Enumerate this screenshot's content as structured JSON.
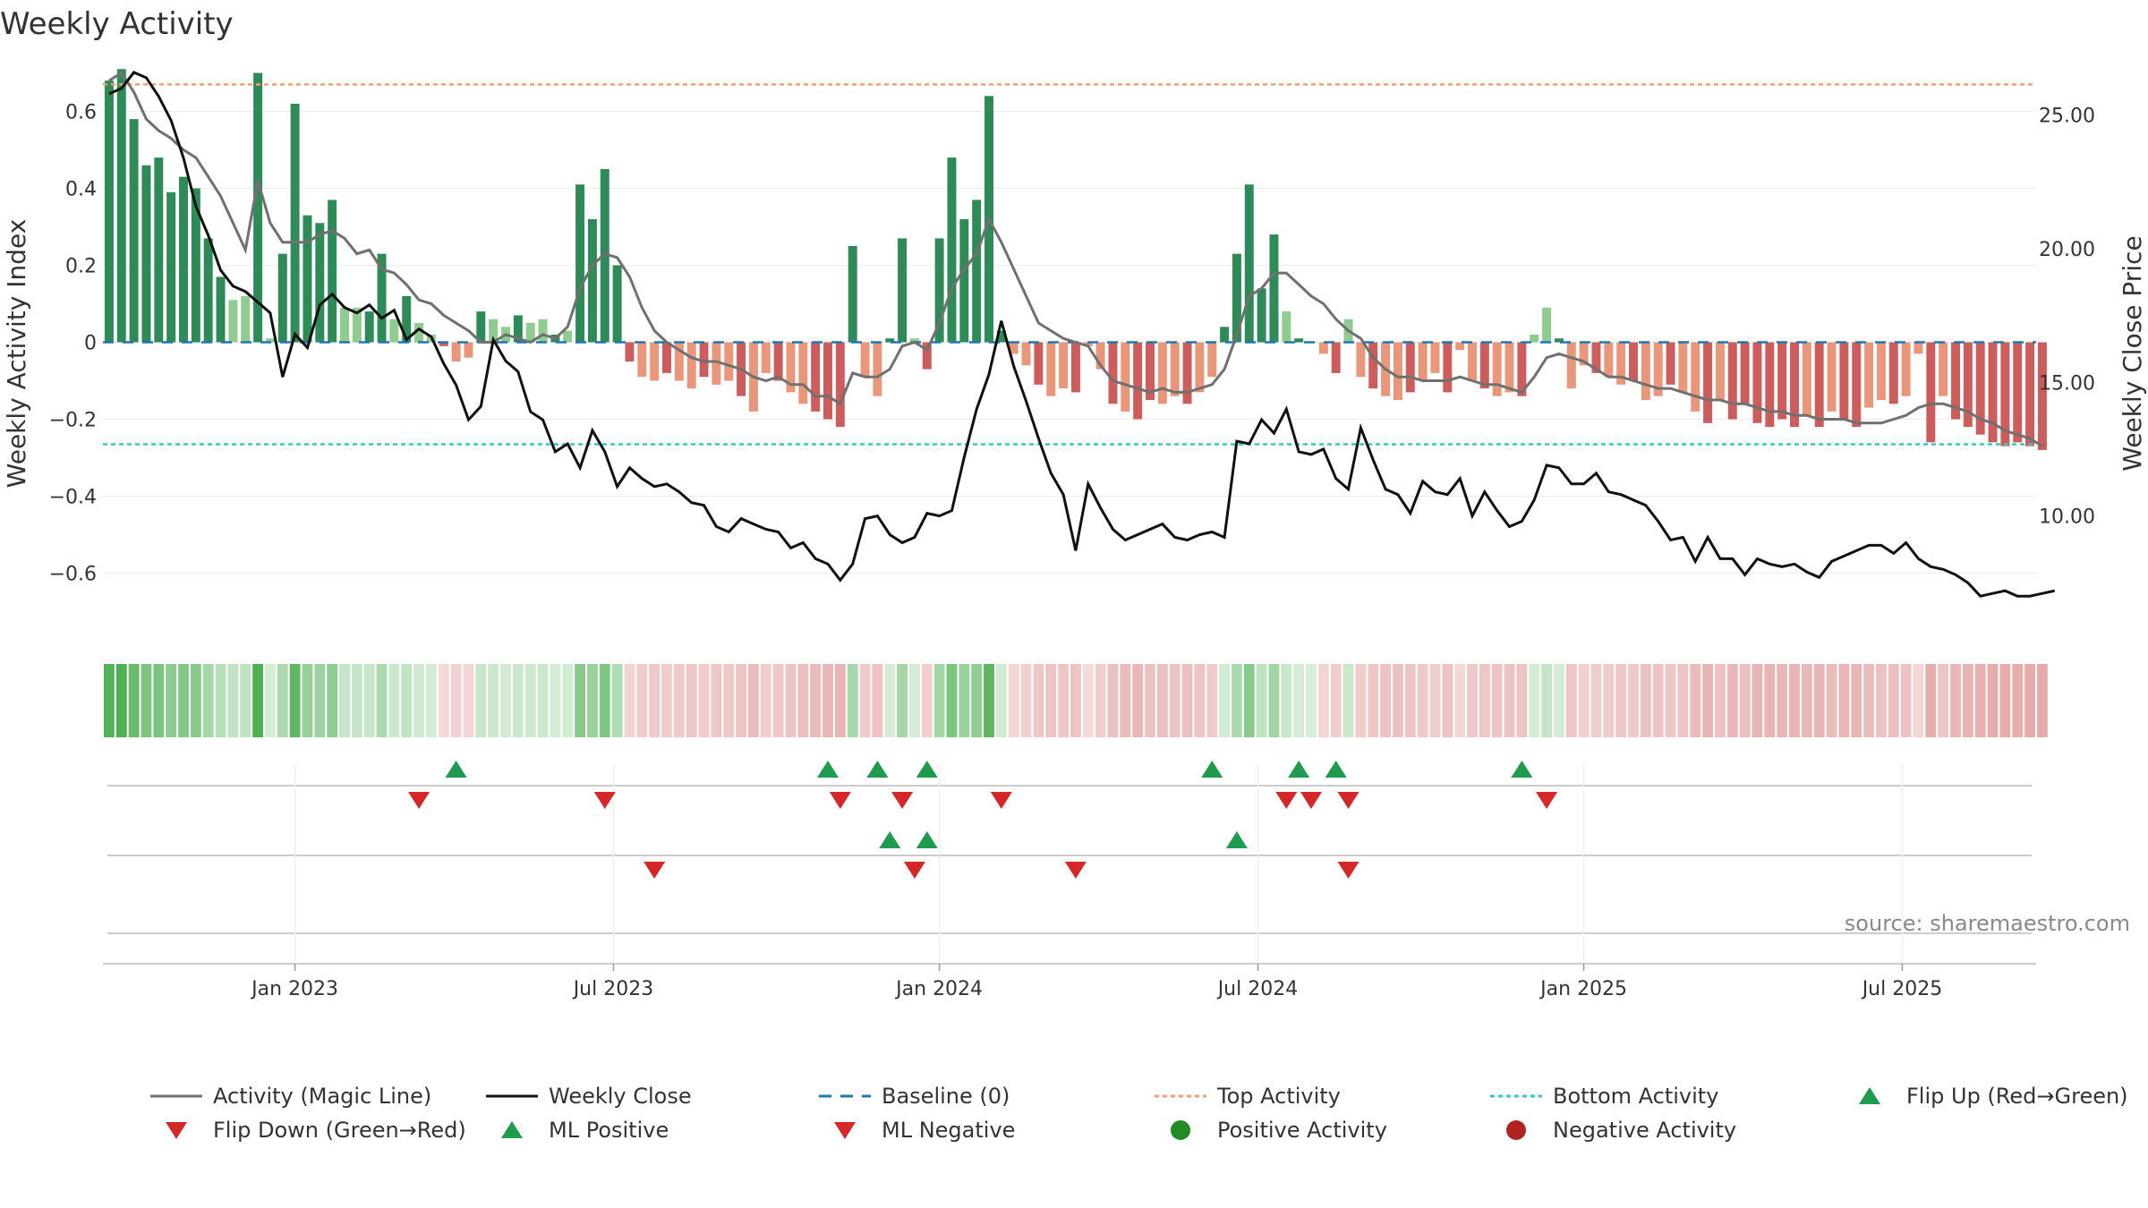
{
  "chart_data": {
    "type": "bar",
    "title": "Weekly Activity",
    "ylabel_left": "Weekly Activity Index",
    "ylabel_right": "Weekly Close Price",
    "source": "source: sharemaestro.com",
    "ylim_left": [
      -0.75,
      0.75
    ],
    "ylim_right": [
      5.7,
      27.3
    ],
    "yticks_left": [
      {
        "v": 0.6,
        "label": "0.6"
      },
      {
        "v": 0.4,
        "label": "0.4"
      },
      {
        "v": 0.2,
        "label": "0.2"
      },
      {
        "v": 0,
        "label": "0"
      },
      {
        "v": -0.2,
        "label": "−0.2"
      },
      {
        "v": -0.4,
        "label": "−0.4"
      },
      {
        "v": -0.6,
        "label": "−0.6"
      }
    ],
    "yticks_right": [
      {
        "v": 25,
        "label": "25.00"
      },
      {
        "v": 20,
        "label": "20.00"
      },
      {
        "v": 15,
        "label": "15.00"
      },
      {
        "v": 10,
        "label": "10.00"
      }
    ],
    "x_domain": [
      -0.5,
      155.5
    ],
    "xticks": [
      {
        "week": 15,
        "label": "Jan 2023"
      },
      {
        "week": 40.7,
        "label": "Jul 2023"
      },
      {
        "week": 67,
        "label": "Jan 2024"
      },
      {
        "week": 92.7,
        "label": "Jul 2024"
      },
      {
        "week": 119,
        "label": "Jan 2025"
      },
      {
        "week": 144.7,
        "label": "Jul 2025"
      }
    ],
    "top_activity": 0.67,
    "bottom_activity": -0.265,
    "series": [
      {
        "name": "Weekly Activity Index",
        "kind": "bar",
        "values": [
          0.68,
          0.71,
          0.58,
          0.46,
          0.48,
          0.39,
          0.43,
          0.4,
          0.27,
          0.17,
          0.11,
          0.12,
          0.7,
          0.01,
          0.23,
          0.62,
          0.33,
          0.31,
          0.37,
          0.09,
          0.09,
          0.08,
          0.23,
          0.06,
          0.12,
          0.05,
          0.02,
          -0.01,
          -0.05,
          -0.04,
          0.08,
          0.06,
          0.04,
          0.07,
          0.05,
          0.06,
          0.02,
          0.03,
          0.41,
          0.32,
          0.45,
          0.2,
          -0.05,
          -0.09,
          -0.1,
          -0.08,
          -0.1,
          -0.12,
          -0.09,
          -0.11,
          -0.1,
          -0.14,
          -0.18,
          -0.08,
          -0.1,
          -0.13,
          -0.16,
          -0.18,
          -0.2,
          -0.22,
          0.25,
          -0.09,
          -0.14,
          0.01,
          0.27,
          0.01,
          -0.07,
          0.27,
          0.48,
          0.32,
          0.37,
          0.64,
          0.03,
          -0.03,
          -0.06,
          -0.11,
          -0.14,
          -0.12,
          -0.13,
          -0.01,
          -0.07,
          -0.16,
          -0.18,
          -0.2,
          -0.15,
          -0.16,
          -0.14,
          -0.16,
          -0.13,
          -0.09,
          0.04,
          0.23,
          0.41,
          0.14,
          0.28,
          0.08,
          0.01,
          0.0,
          -0.03,
          -0.08,
          0.06,
          -0.09,
          -0.12,
          -0.14,
          -0.15,
          -0.13,
          -0.1,
          -0.08,
          -0.13,
          -0.02,
          -0.1,
          -0.12,
          -0.14,
          -0.13,
          -0.14,
          0.02,
          0.09,
          0.01,
          -0.12,
          -0.06,
          -0.08,
          -0.09,
          -0.11,
          -0.1,
          -0.15,
          -0.14,
          -0.11,
          -0.13,
          -0.18,
          -0.21,
          -0.15,
          -0.2,
          -0.16,
          -0.21,
          -0.22,
          -0.2,
          -0.22,
          -0.19,
          -0.22,
          -0.18,
          -0.2,
          -0.22,
          -0.17,
          -0.15,
          -0.16,
          -0.14,
          -0.03,
          -0.26,
          -0.14,
          -0.2,
          -0.22,
          -0.24,
          -0.26,
          -0.27,
          -0.26,
          -0.27,
          -0.28
        ]
      },
      {
        "name": "Activity (Magic Line)",
        "kind": "line",
        "values": [
          0.68,
          0.7,
          0.65,
          0.58,
          0.55,
          0.53,
          0.5,
          0.48,
          0.43,
          0.38,
          0.31,
          0.24,
          0.42,
          0.31,
          0.26,
          0.26,
          0.26,
          0.28,
          0.29,
          0.27,
          0.23,
          0.24,
          0.19,
          0.18,
          0.15,
          0.11,
          0.1,
          0.07,
          0.05,
          0.03,
          0.0,
          0.0,
          0.02,
          0.01,
          0.0,
          0.02,
          0.01,
          0.04,
          0.14,
          0.2,
          0.23,
          0.22,
          0.17,
          0.09,
          0.03,
          0.0,
          -0.02,
          -0.04,
          -0.05,
          -0.05,
          -0.06,
          -0.07,
          -0.09,
          -0.1,
          -0.09,
          -0.11,
          -0.11,
          -0.14,
          -0.14,
          -0.16,
          -0.08,
          -0.09,
          -0.09,
          -0.07,
          -0.01,
          0.0,
          -0.02,
          0.05,
          0.14,
          0.19,
          0.23,
          0.32,
          0.26,
          0.19,
          0.12,
          0.05,
          0.03,
          0.01,
          0.0,
          -0.01,
          -0.06,
          -0.1,
          -0.11,
          -0.12,
          -0.13,
          -0.12,
          -0.13,
          -0.13,
          -0.12,
          -0.11,
          -0.07,
          0.02,
          0.12,
          0.14,
          0.18,
          0.18,
          0.15,
          0.12,
          0.1,
          0.06,
          0.03,
          0.01,
          -0.04,
          -0.07,
          -0.09,
          -0.09,
          -0.1,
          -0.1,
          -0.1,
          -0.09,
          -0.1,
          -0.11,
          -0.11,
          -0.12,
          -0.13,
          -0.09,
          -0.04,
          -0.03,
          -0.04,
          -0.05,
          -0.07,
          -0.09,
          -0.09,
          -0.1,
          -0.11,
          -0.12,
          -0.12,
          -0.13,
          -0.14,
          -0.15,
          -0.15,
          -0.16,
          -0.16,
          -0.17,
          -0.18,
          -0.18,
          -0.19,
          -0.19,
          -0.2,
          -0.2,
          -0.2,
          -0.21,
          -0.21,
          -0.21,
          -0.2,
          -0.19,
          -0.17,
          -0.16,
          -0.16,
          -0.17,
          -0.18,
          -0.2,
          -0.21,
          -0.23,
          -0.24,
          -0.25,
          -0.27
        ]
      },
      {
        "name": "Weekly Close",
        "kind": "line",
        "values": [
          25.8,
          26.0,
          26.6,
          26.4,
          25.7,
          24.8,
          23.4,
          21.6,
          20.5,
          19.2,
          18.6,
          18.4,
          18.0,
          17.6,
          15.2,
          16.8,
          16.3,
          17.9,
          18.3,
          17.8,
          17.6,
          17.9,
          17.4,
          17.7,
          16.6,
          17.0,
          16.7,
          15.7,
          14.9,
          13.6,
          14.1,
          16.6,
          15.8,
          15.4,
          13.9,
          13.6,
          12.4,
          12.7,
          11.8,
          13.2,
          12.4,
          11.1,
          11.8,
          11.4,
          11.1,
          11.2,
          10.9,
          10.5,
          10.4,
          9.6,
          9.4,
          9.9,
          9.7,
          9.5,
          9.4,
          8.8,
          9.0,
          8.4,
          8.2,
          7.6,
          8.2,
          9.9,
          10.0,
          9.3,
          9.0,
          9.2,
          10.1,
          10.0,
          10.2,
          12.2,
          14.0,
          15.3,
          17.3,
          15.6,
          14.3,
          12.9,
          11.6,
          10.8,
          8.7,
          11.2,
          10.3,
          9.5,
          9.1,
          9.3,
          9.5,
          9.7,
          9.2,
          9.1,
          9.3,
          9.4,
          9.2,
          12.8,
          12.7,
          13.6,
          13.1,
          14.0,
          12.4,
          12.3,
          12.5,
          11.4,
          11.0,
          13.3,
          12.1,
          11.0,
          10.8,
          10.1,
          11.3,
          10.9,
          10.8,
          11.4,
          10.0,
          10.9,
          10.2,
          9.6,
          9.8,
          10.6,
          11.9,
          11.8,
          11.2,
          11.2,
          11.6,
          10.9,
          10.8,
          10.6,
          10.4,
          9.8,
          9.1,
          9.2,
          8.3,
          9.2,
          8.4,
          8.4,
          7.8,
          8.4,
          8.2,
          8.1,
          8.2,
          7.9,
          7.7,
          8.3,
          8.5,
          8.7,
          8.9,
          8.9,
          8.6,
          9.0,
          8.4,
          8.1,
          8.0,
          7.8,
          7.5,
          7.0,
          7.1,
          7.2,
          7.0,
          7.0,
          7.1,
          7.2
        ]
      }
    ],
    "flip_up_weeks": [
      28,
      58,
      62,
      66,
      89,
      96,
      99,
      114
    ],
    "flip_down_weeks": [
      25,
      40,
      59,
      64,
      72,
      95,
      97,
      100,
      116
    ],
    "ml_positive_weeks": [
      63,
      66,
      91
    ],
    "ml_negative_weeks": [
      44,
      65,
      78,
      100
    ],
    "legend": [
      {
        "label": "Activity (Magic Line)",
        "symbol": "line",
        "color": "#707070"
      },
      {
        "label": "Weekly Close",
        "symbol": "line",
        "color": "#111111"
      },
      {
        "label": "Baseline (0)",
        "symbol": "dashed",
        "color": "#1f77b4"
      },
      {
        "label": "Top Activity",
        "symbol": "dotted",
        "color": "#f0a070"
      },
      {
        "label": "Bottom Activity",
        "symbol": "dotted",
        "color": "#30c8c8"
      },
      {
        "label": "Flip Up (Red→Green)",
        "symbol": "tri-up",
        "color": "#1e9b4e"
      },
      {
        "label": "Flip Down (Green→Red)",
        "symbol": "tri-down",
        "color": "#d62728"
      },
      {
        "label": "ML Positive",
        "symbol": "tri-up",
        "color": "#1e9b4e"
      },
      {
        "label": "ML Negative",
        "symbol": "tri-down",
        "color": "#d62728"
      },
      {
        "label": "Positive Activity",
        "symbol": "dot",
        "color": "#228b22"
      },
      {
        "label": "Negative Activity",
        "symbol": "dot",
        "color": "#b22222"
      }
    ],
    "colors": {
      "pos_strong": "#2e8b57",
      "pos_weak": "#8fcc8f",
      "neg_strong": "#cd5c5c",
      "neg_weak": "#e9967a",
      "magic": "#707070",
      "close": "#111111",
      "baseline": "#1f77b4",
      "top": "#f0a070",
      "bottom": "#30c8c8",
      "up": "#1e9b4e",
      "down": "#d62728",
      "strip_pos": "#4caf50",
      "strip_neg": "#cd5c5c"
    }
  }
}
